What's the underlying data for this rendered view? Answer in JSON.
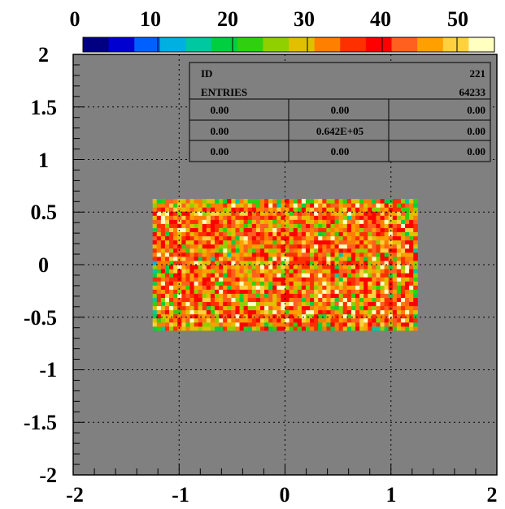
{
  "chart_data": {
    "type": "heatmap",
    "title": "",
    "xlabel": "",
    "ylabel": "",
    "xlim": [
      -2,
      2
    ],
    "ylim": [
      -2,
      2
    ],
    "grid": true,
    "x_ticks": [
      "-2",
      "-1",
      "0",
      "1",
      "2"
    ],
    "y_ticks": [
      "-2",
      "-1.5",
      "-1",
      "-0.5",
      "0",
      "0.5",
      "1",
      "1.5",
      "2"
    ],
    "color_scale": {
      "min": 0,
      "max": 55,
      "ticks": [
        "0",
        "10",
        "20",
        "30",
        "40",
        "50"
      ],
      "palette": [
        "#000080",
        "#0000d0",
        "#0060ff",
        "#00b0e0",
        "#00c8a0",
        "#00d040",
        "#30d010",
        "#90d000",
        "#e0c000",
        "#ff8000",
        "#ff3000",
        "#ff0000",
        "#ff6020",
        "#ffa000",
        "#ffd040",
        "#ffffc0"
      ]
    },
    "frame_color": "#808080",
    "filled_region": {
      "x": [
        -1.25,
        1.25
      ],
      "y": [
        -0.625,
        0.625
      ]
    },
    "bins": {
      "nx": 64,
      "ny": 32,
      "dominant_level": 38,
      "spread": 12
    },
    "stats": {
      "id_label": "ID",
      "id_value": "221",
      "entries_label": "ENTRIES",
      "entries_value": "64233",
      "rows": [
        [
          "0.00",
          "0.00",
          "0.00"
        ],
        [
          "0.00",
          "0.642E+05",
          "0.00"
        ],
        [
          "0.00",
          "0.00",
          "0.00"
        ]
      ]
    }
  }
}
